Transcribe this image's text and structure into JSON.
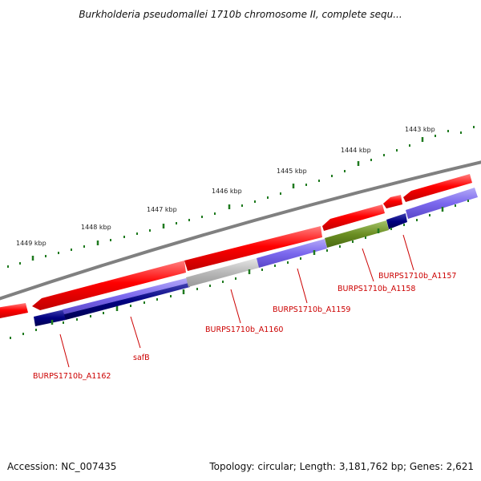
{
  "title": "Burkholderia pseudomallei 1710b chromosome II, complete sequ...",
  "footer": {
    "accession": "Accession: NC_007435",
    "stats": "Topology: circular; Length: 3,181,762 bp; Genes: 2,621"
  },
  "ruler": {
    "labels": [
      "1443 kbp",
      "1444 kbp",
      "1445 kbp",
      "1446 kbp",
      "1447 kbp",
      "1448 kbp",
      "1449 kbp"
    ]
  },
  "colors": {
    "backbone": "#808080",
    "tick": "#1f7a1f",
    "label": "#cc0000",
    "forward_cds": "#ff0000",
    "reverse_cds_blue": "#7b68ee",
    "reverse_cds_navy": "#000080",
    "reverse_cds_gray": "#b8b8b8",
    "reverse_cds_olive": "#6b8e23"
  },
  "gene_labels": [
    "BURPS1710b_A1157",
    "BURPS1710b_A1158",
    "BURPS1710b_A1159",
    "BURPS1710b_A1160",
    "safB",
    "BURPS1710b_A1162"
  ]
}
